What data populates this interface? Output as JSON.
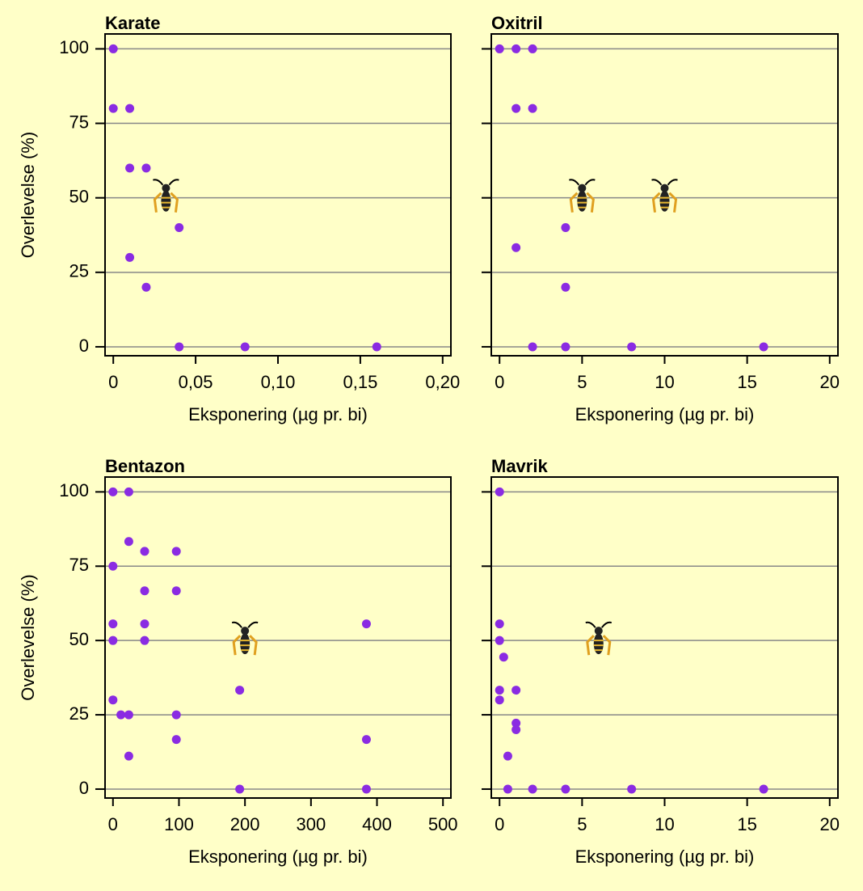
{
  "chart_data": [
    {
      "type": "scatter",
      "title": "Karate",
      "xlabel": "Eksponering (µg pr. bi)",
      "ylabel": "Overlevelse (%)",
      "xlim": [
        -0.005,
        0.205
      ],
      "ylim": [
        -3,
        105
      ],
      "xticks": [
        0,
        {
          "value": 0.05,
          "label": "0,05"
        },
        {
          "value": 0.1,
          "label": "0,10"
        },
        {
          "value": 0.15,
          "label": "0,15"
        },
        {
          "value": 0.2,
          "label": "0,20"
        }
      ],
      "yticks": [
        0,
        25,
        50,
        75,
        100
      ],
      "ytick_labels": true,
      "grid": true,
      "series": [
        {
          "color": "#8a2be2",
          "x": [
            0,
            0,
            0.01,
            0.01,
            0.02,
            0.01,
            0.02,
            0.04,
            0.04,
            0.08,
            0.16
          ],
          "values": [
            100,
            80,
            80,
            60,
            60,
            30,
            20,
            40,
            0,
            0,
            0
          ]
        },
        {
          "marker": "bee",
          "x": [
            0.032
          ],
          "values": [
            50
          ]
        }
      ]
    },
    {
      "type": "scatter",
      "title": "Oxitril",
      "xlabel": "Eksponering (µg pr. bi)",
      "xlim": [
        -0.5,
        20.5
      ],
      "ylim": [
        -3,
        105
      ],
      "xticks": [
        0,
        5,
        10,
        15,
        20
      ],
      "yticks": [
        0,
        25,
        50,
        75,
        100
      ],
      "ytick_labels": false,
      "grid": true,
      "series": [
        {
          "color": "#8a2be2",
          "x": [
            0,
            1,
            2,
            1,
            2,
            1,
            4,
            4,
            2,
            4,
            8,
            16
          ],
          "values": [
            100,
            100,
            100,
            80,
            80,
            33.3,
            40,
            20,
            0,
            0,
            0,
            0
          ]
        },
        {
          "marker": "bee",
          "x": [
            5,
            10
          ],
          "values": [
            50,
            50
          ]
        }
      ]
    },
    {
      "type": "scatter",
      "title": "Bentazon",
      "xlabel": "Eksponering (µg pr. bi)",
      "ylabel": "Overlevelse (%)",
      "xlim": [
        -12,
        512
      ],
      "ylim": [
        -3,
        105
      ],
      "xticks": [
        0,
        100,
        200,
        300,
        400,
        500
      ],
      "yticks": [
        0,
        25,
        50,
        75,
        100
      ],
      "ytick_labels": true,
      "grid": true,
      "series": [
        {
          "color": "#8a2be2",
          "x": [
            0,
            24,
            24,
            48,
            96,
            0,
            48,
            96,
            0,
            48,
            0,
            48,
            0,
            12,
            24,
            96,
            96,
            24,
            192,
            192,
            384,
            384,
            384
          ],
          "values": [
            100,
            100,
            83.3,
            80,
            80,
            75,
            66.7,
            66.7,
            55.6,
            55.6,
            50,
            50,
            30,
            25,
            25,
            25,
            16.7,
            11.1,
            33.3,
            0,
            55.6,
            16.7,
            0
          ]
        },
        {
          "marker": "bee",
          "x": [
            200
          ],
          "values": [
            50
          ]
        }
      ]
    },
    {
      "type": "scatter",
      "title": "Mavrik",
      "xlabel": "Eksponering (µg pr. bi)",
      "xlim": [
        -0.5,
        20.5
      ],
      "ylim": [
        -3,
        105
      ],
      "xticks": [
        0,
        5,
        10,
        15,
        20
      ],
      "yticks": [
        0,
        25,
        50,
        75,
        100
      ],
      "ytick_labels": false,
      "grid": true,
      "series": [
        {
          "color": "#8a2be2",
          "x": [
            0,
            0,
            0,
            0.25,
            0,
            0,
            1,
            1,
            1,
            0.5,
            0.5,
            2,
            4,
            8,
            16
          ],
          "values": [
            100,
            55.6,
            50,
            44.4,
            33.3,
            30,
            33.3,
            22.2,
            20,
            11.1,
            0,
            0,
            0,
            0,
            0
          ]
        },
        {
          "marker": "bee",
          "x": [
            6
          ],
          "values": [
            50
          ]
        }
      ]
    }
  ]
}
